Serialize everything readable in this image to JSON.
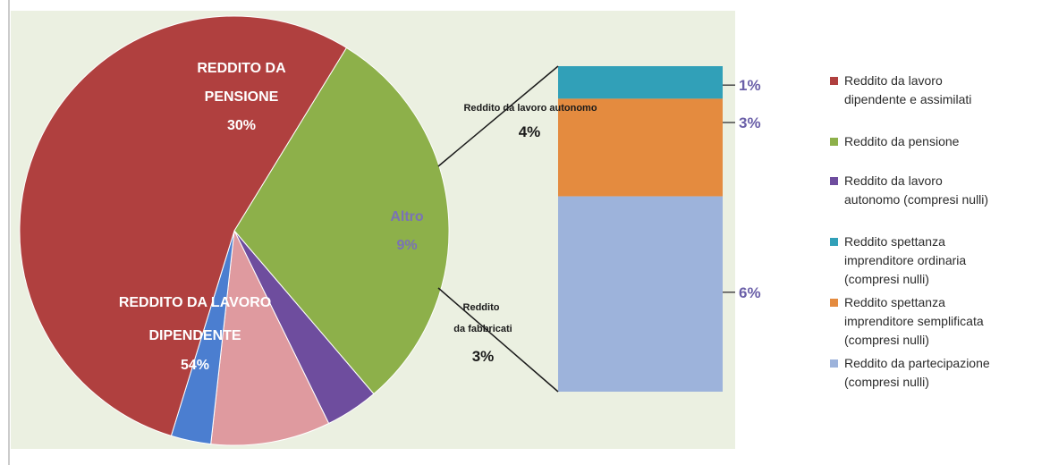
{
  "chart_data": [
    {
      "type": "pie",
      "slices": [
        {
          "label": "REDDITO DA PENSIONE",
          "value_label": "30%",
          "value": 30,
          "color": "#8DB04A"
        },
        {
          "label": "Reddito da lavoro autonomo",
          "value_label": "4%",
          "value": 4,
          "color": "#6E4D9E"
        },
        {
          "label": "Altro",
          "value_label": "9%",
          "value": 9,
          "color": "#DF9A9F"
        },
        {
          "label": "Reddito da fabbricati",
          "value_label": "3%",
          "value": 3,
          "color": "#4B7ED0"
        },
        {
          "label": "REDDITO DA LAVORO DIPENDENTE",
          "value_label": "54%",
          "value": 54,
          "color": "#B0403F"
        }
      ]
    },
    {
      "type": "bar",
      "stacked": true,
      "segments": [
        {
          "value_label": "1%",
          "value": 1,
          "color": "#31A0B8"
        },
        {
          "value_label": "3%",
          "value": 3,
          "color": "#E48B3F"
        },
        {
          "value_label": "6%",
          "value": 6,
          "color": "#9DB3DB"
        }
      ]
    }
  ],
  "legend": {
    "items": [
      {
        "label": "Reddito da lavoro dipendente e assimilati",
        "color": "#B0403F"
      },
      {
        "label": "Reddito da pensione",
        "color": "#8DB04A"
      },
      {
        "label": "Reddito da lavoro autonomo (compresi nulli)",
        "color": "#6E4D9E"
      },
      {
        "label": "Reddito spettanza imprenditore ordinaria (compresi nulli)",
        "color": "#31A0B8"
      },
      {
        "label": "Reddito spettanza imprenditore semplificata (compresi nulli)",
        "color": "#E48B3F"
      },
      {
        "label": "Reddito da partecipazione (compresi nulli)",
        "color": "#9DB3DB"
      }
    ]
  },
  "colors": {
    "plot_background": "#EBF0E1",
    "callout_text": "#6A5FA8"
  }
}
